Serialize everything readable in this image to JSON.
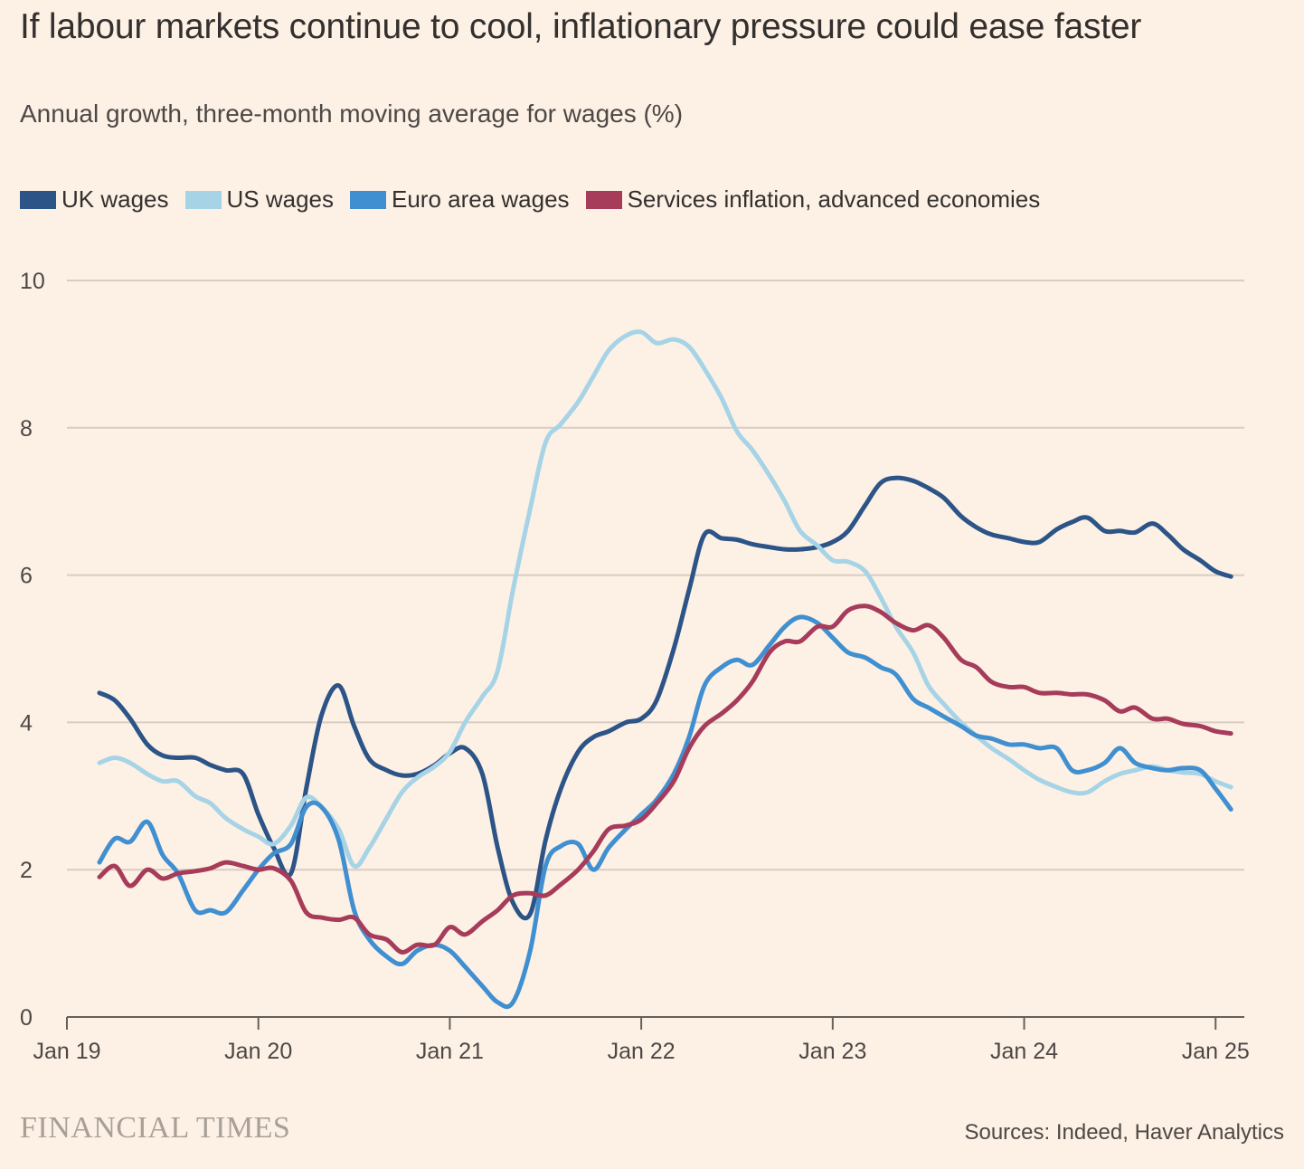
{
  "title": "If labour markets continue to cool, inflationary pressure could ease faster",
  "subtitle": "Annual growth, three-month moving average for wages (%)",
  "brand": "FINANCIAL TIMES",
  "source": "Sources: Indeed, Haver Analytics",
  "colors": {
    "background": "#fdf1e6",
    "grid": "#d9cdc3",
    "axis": "#66605c"
  },
  "chart_data": {
    "type": "line",
    "title": "If labour markets continue to cool, inflationary pressure could ease faster",
    "subtitle": "Annual growth, three-month moving average for wages (%)",
    "ylim": [
      0,
      10
    ],
    "yticks": [
      0,
      2,
      4,
      6,
      8,
      10
    ],
    "xlim": [
      2019.0,
      2025.15
    ],
    "xticks": [
      {
        "value": 2019,
        "label": "Jan 19"
      },
      {
        "value": 2020,
        "label": "Jan 20"
      },
      {
        "value": 2021,
        "label": "Jan 21"
      },
      {
        "value": 2022,
        "label": "Jan 22"
      },
      {
        "value": 2023,
        "label": "Jan 23"
      },
      {
        "value": 2024,
        "label": "Jan 24"
      },
      {
        "value": 2025,
        "label": "Jan 25"
      }
    ],
    "grid": true,
    "legend_position": "top-left",
    "series": [
      {
        "name": "UK wages",
        "color": "#2c5487",
        "points": [
          [
            2019.17,
            4.4
          ],
          [
            2019.25,
            4.3
          ],
          [
            2019.33,
            4.05
          ],
          [
            2019.42,
            3.7
          ],
          [
            2019.5,
            3.55
          ],
          [
            2019.58,
            3.52
          ],
          [
            2019.67,
            3.52
          ],
          [
            2019.75,
            3.42
          ],
          [
            2019.83,
            3.35
          ],
          [
            2019.92,
            3.3
          ],
          [
            2020.0,
            2.75
          ],
          [
            2020.08,
            2.3
          ],
          [
            2020.17,
            1.95
          ],
          [
            2020.25,
            3.1
          ],
          [
            2020.33,
            4.1
          ],
          [
            2020.42,
            4.5
          ],
          [
            2020.5,
            3.95
          ],
          [
            2020.58,
            3.5
          ],
          [
            2020.67,
            3.35
          ],
          [
            2020.75,
            3.28
          ],
          [
            2020.83,
            3.3
          ],
          [
            2020.92,
            3.42
          ],
          [
            2021.0,
            3.58
          ],
          [
            2021.08,
            3.65
          ],
          [
            2021.17,
            3.3
          ],
          [
            2021.25,
            2.3
          ],
          [
            2021.33,
            1.55
          ],
          [
            2021.42,
            1.4
          ],
          [
            2021.5,
            2.4
          ],
          [
            2021.58,
            3.1
          ],
          [
            2021.67,
            3.6
          ],
          [
            2021.75,
            3.8
          ],
          [
            2021.83,
            3.88
          ],
          [
            2021.92,
            4.0
          ],
          [
            2022.0,
            4.05
          ],
          [
            2022.08,
            4.3
          ],
          [
            2022.17,
            5.0
          ],
          [
            2022.25,
            5.8
          ],
          [
            2022.33,
            6.55
          ],
          [
            2022.42,
            6.5
          ],
          [
            2022.5,
            6.48
          ],
          [
            2022.58,
            6.42
          ],
          [
            2022.67,
            6.38
          ],
          [
            2022.75,
            6.35
          ],
          [
            2022.83,
            6.35
          ],
          [
            2022.92,
            6.38
          ],
          [
            2023.0,
            6.45
          ],
          [
            2023.08,
            6.6
          ],
          [
            2023.17,
            6.95
          ],
          [
            2023.25,
            7.25
          ],
          [
            2023.33,
            7.32
          ],
          [
            2023.42,
            7.28
          ],
          [
            2023.5,
            7.18
          ],
          [
            2023.58,
            7.05
          ],
          [
            2023.67,
            6.8
          ],
          [
            2023.75,
            6.65
          ],
          [
            2023.83,
            6.55
          ],
          [
            2023.92,
            6.5
          ],
          [
            2024.0,
            6.45
          ],
          [
            2024.08,
            6.45
          ],
          [
            2024.17,
            6.62
          ],
          [
            2024.25,
            6.72
          ],
          [
            2024.33,
            6.78
          ],
          [
            2024.42,
            6.6
          ],
          [
            2024.5,
            6.6
          ],
          [
            2024.58,
            6.58
          ],
          [
            2024.67,
            6.7
          ],
          [
            2024.75,
            6.55
          ],
          [
            2024.83,
            6.35
          ],
          [
            2024.92,
            6.2
          ],
          [
            2025.0,
            6.05
          ],
          [
            2025.08,
            5.98
          ]
        ]
      },
      {
        "name": "US wages",
        "color": "#a6d4e6",
        "points": [
          [
            2019.17,
            3.45
          ],
          [
            2019.25,
            3.52
          ],
          [
            2019.33,
            3.45
          ],
          [
            2019.42,
            3.3
          ],
          [
            2019.5,
            3.2
          ],
          [
            2019.58,
            3.2
          ],
          [
            2019.67,
            3.0
          ],
          [
            2019.75,
            2.9
          ],
          [
            2019.83,
            2.7
          ],
          [
            2019.92,
            2.55
          ],
          [
            2020.0,
            2.45
          ],
          [
            2020.08,
            2.35
          ],
          [
            2020.17,
            2.6
          ],
          [
            2020.25,
            2.98
          ],
          [
            2020.33,
            2.85
          ],
          [
            2020.42,
            2.55
          ],
          [
            2020.5,
            2.05
          ],
          [
            2020.58,
            2.3
          ],
          [
            2020.67,
            2.7
          ],
          [
            2020.75,
            3.05
          ],
          [
            2020.83,
            3.25
          ],
          [
            2020.92,
            3.4
          ],
          [
            2021.0,
            3.6
          ],
          [
            2021.08,
            4.0
          ],
          [
            2021.17,
            4.35
          ],
          [
            2021.25,
            4.7
          ],
          [
            2021.33,
            5.8
          ],
          [
            2021.42,
            6.9
          ],
          [
            2021.5,
            7.8
          ],
          [
            2021.58,
            8.05
          ],
          [
            2021.67,
            8.35
          ],
          [
            2021.75,
            8.7
          ],
          [
            2021.83,
            9.05
          ],
          [
            2021.92,
            9.25
          ],
          [
            2022.0,
            9.3
          ],
          [
            2022.08,
            9.15
          ],
          [
            2022.17,
            9.2
          ],
          [
            2022.25,
            9.1
          ],
          [
            2022.33,
            8.8
          ],
          [
            2022.42,
            8.4
          ],
          [
            2022.5,
            7.95
          ],
          [
            2022.58,
            7.7
          ],
          [
            2022.67,
            7.35
          ],
          [
            2022.75,
            7.0
          ],
          [
            2022.83,
            6.6
          ],
          [
            2022.92,
            6.4
          ],
          [
            2023.0,
            6.2
          ],
          [
            2023.08,
            6.18
          ],
          [
            2023.17,
            6.05
          ],
          [
            2023.25,
            5.7
          ],
          [
            2023.33,
            5.3
          ],
          [
            2023.42,
            4.95
          ],
          [
            2023.5,
            4.5
          ],
          [
            2023.58,
            4.25
          ],
          [
            2023.67,
            4.0
          ],
          [
            2023.75,
            3.82
          ],
          [
            2023.83,
            3.65
          ],
          [
            2023.92,
            3.5
          ],
          [
            2024.0,
            3.35
          ],
          [
            2024.08,
            3.22
          ],
          [
            2024.17,
            3.12
          ],
          [
            2024.25,
            3.05
          ],
          [
            2024.33,
            3.05
          ],
          [
            2024.42,
            3.2
          ],
          [
            2024.5,
            3.3
          ],
          [
            2024.58,
            3.35
          ],
          [
            2024.67,
            3.4
          ],
          [
            2024.75,
            3.35
          ],
          [
            2024.83,
            3.32
          ],
          [
            2024.92,
            3.3
          ],
          [
            2025.0,
            3.2
          ],
          [
            2025.08,
            3.12
          ]
        ]
      },
      {
        "name": "Euro area wages",
        "color": "#408fd0",
        "points": [
          [
            2019.17,
            2.1
          ],
          [
            2019.25,
            2.42
          ],
          [
            2019.33,
            2.38
          ],
          [
            2019.42,
            2.65
          ],
          [
            2019.5,
            2.2
          ],
          [
            2019.58,
            1.95
          ],
          [
            2019.67,
            1.45
          ],
          [
            2019.75,
            1.45
          ],
          [
            2019.83,
            1.42
          ],
          [
            2019.92,
            1.72
          ],
          [
            2020.0,
            2.0
          ],
          [
            2020.08,
            2.22
          ],
          [
            2020.17,
            2.35
          ],
          [
            2020.25,
            2.85
          ],
          [
            2020.33,
            2.85
          ],
          [
            2020.42,
            2.4
          ],
          [
            2020.5,
            1.45
          ],
          [
            2020.58,
            1.05
          ],
          [
            2020.67,
            0.82
          ],
          [
            2020.75,
            0.72
          ],
          [
            2020.83,
            0.9
          ],
          [
            2020.92,
            0.98
          ],
          [
            2021.0,
            0.9
          ],
          [
            2021.08,
            0.68
          ],
          [
            2021.17,
            0.42
          ],
          [
            2021.25,
            0.2
          ],
          [
            2021.33,
            0.2
          ],
          [
            2021.42,
            0.9
          ],
          [
            2021.5,
            2.05
          ],
          [
            2021.58,
            2.32
          ],
          [
            2021.67,
            2.35
          ],
          [
            2021.75,
            2.0
          ],
          [
            2021.83,
            2.3
          ],
          [
            2021.92,
            2.55
          ],
          [
            2022.0,
            2.75
          ],
          [
            2022.08,
            2.95
          ],
          [
            2022.17,
            3.3
          ],
          [
            2022.25,
            3.8
          ],
          [
            2022.33,
            4.5
          ],
          [
            2022.42,
            4.75
          ],
          [
            2022.5,
            4.85
          ],
          [
            2022.58,
            4.78
          ],
          [
            2022.67,
            5.05
          ],
          [
            2022.75,
            5.3
          ],
          [
            2022.83,
            5.43
          ],
          [
            2022.92,
            5.35
          ],
          [
            2023.0,
            5.15
          ],
          [
            2023.08,
            4.95
          ],
          [
            2023.17,
            4.88
          ],
          [
            2023.25,
            4.75
          ],
          [
            2023.33,
            4.65
          ],
          [
            2023.42,
            4.32
          ],
          [
            2023.5,
            4.2
          ],
          [
            2023.58,
            4.08
          ],
          [
            2023.67,
            3.95
          ],
          [
            2023.75,
            3.82
          ],
          [
            2023.83,
            3.78
          ],
          [
            2023.92,
            3.7
          ],
          [
            2024.0,
            3.7
          ],
          [
            2024.08,
            3.65
          ],
          [
            2024.17,
            3.65
          ],
          [
            2024.25,
            3.35
          ],
          [
            2024.33,
            3.35
          ],
          [
            2024.42,
            3.45
          ],
          [
            2024.5,
            3.65
          ],
          [
            2024.58,
            3.45
          ],
          [
            2024.67,
            3.38
          ],
          [
            2024.75,
            3.35
          ],
          [
            2024.83,
            3.38
          ],
          [
            2024.92,
            3.35
          ],
          [
            2025.0,
            3.1
          ],
          [
            2025.08,
            2.82
          ]
        ]
      },
      {
        "name": "Services inflation, advanced economies",
        "color": "#a63c5a",
        "points": [
          [
            2019.17,
            1.9
          ],
          [
            2019.25,
            2.05
          ],
          [
            2019.33,
            1.78
          ],
          [
            2019.42,
            2.0
          ],
          [
            2019.5,
            1.88
          ],
          [
            2019.58,
            1.95
          ],
          [
            2019.67,
            1.98
          ],
          [
            2019.75,
            2.02
          ],
          [
            2019.83,
            2.1
          ],
          [
            2019.92,
            2.05
          ],
          [
            2020.0,
            2.0
          ],
          [
            2020.08,
            2.02
          ],
          [
            2020.17,
            1.85
          ],
          [
            2020.25,
            1.42
          ],
          [
            2020.33,
            1.35
          ],
          [
            2020.42,
            1.32
          ],
          [
            2020.5,
            1.35
          ],
          [
            2020.58,
            1.12
          ],
          [
            2020.67,
            1.05
          ],
          [
            2020.75,
            0.88
          ],
          [
            2020.83,
            0.98
          ],
          [
            2020.92,
            0.98
          ],
          [
            2021.0,
            1.22
          ],
          [
            2021.08,
            1.12
          ],
          [
            2021.17,
            1.3
          ],
          [
            2021.25,
            1.45
          ],
          [
            2021.33,
            1.65
          ],
          [
            2021.42,
            1.68
          ],
          [
            2021.5,
            1.65
          ],
          [
            2021.58,
            1.8
          ],
          [
            2021.67,
            2.0
          ],
          [
            2021.75,
            2.25
          ],
          [
            2021.83,
            2.55
          ],
          [
            2021.92,
            2.6
          ],
          [
            2022.0,
            2.68
          ],
          [
            2022.08,
            2.9
          ],
          [
            2022.17,
            3.2
          ],
          [
            2022.25,
            3.65
          ],
          [
            2022.33,
            3.95
          ],
          [
            2022.42,
            4.12
          ],
          [
            2022.5,
            4.3
          ],
          [
            2022.58,
            4.55
          ],
          [
            2022.67,
            4.95
          ],
          [
            2022.75,
            5.1
          ],
          [
            2022.83,
            5.1
          ],
          [
            2022.92,
            5.3
          ],
          [
            2023.0,
            5.3
          ],
          [
            2023.08,
            5.52
          ],
          [
            2023.17,
            5.58
          ],
          [
            2023.25,
            5.5
          ],
          [
            2023.33,
            5.35
          ],
          [
            2023.42,
            5.25
          ],
          [
            2023.5,
            5.32
          ],
          [
            2023.58,
            5.15
          ],
          [
            2023.67,
            4.85
          ],
          [
            2023.75,
            4.75
          ],
          [
            2023.83,
            4.55
          ],
          [
            2023.92,
            4.48
          ],
          [
            2024.0,
            4.48
          ],
          [
            2024.08,
            4.4
          ],
          [
            2024.17,
            4.4
          ],
          [
            2024.25,
            4.38
          ],
          [
            2024.33,
            4.38
          ],
          [
            2024.42,
            4.3
          ],
          [
            2024.5,
            4.15
          ],
          [
            2024.58,
            4.2
          ],
          [
            2024.67,
            4.05
          ],
          [
            2024.75,
            4.05
          ],
          [
            2024.83,
            3.98
          ],
          [
            2024.92,
            3.95
          ],
          [
            2025.0,
            3.88
          ],
          [
            2025.08,
            3.85
          ]
        ]
      }
    ]
  }
}
